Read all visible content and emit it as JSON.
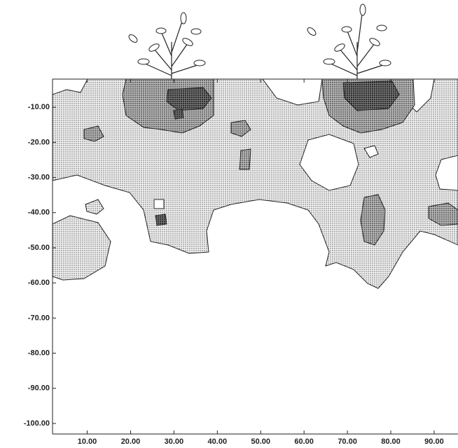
{
  "chart_data": {
    "type": "contour",
    "xlim": [
      2,
      95.5
    ],
    "ylim": [
      -103,
      -2
    ],
    "xticks": [
      {
        "value": 10,
        "label": "10.00"
      },
      {
        "value": 20,
        "label": "20.00"
      },
      {
        "value": 30,
        "label": "30.00"
      },
      {
        "value": 40,
        "label": "40.00"
      },
      {
        "value": 50,
        "label": "50.00"
      },
      {
        "value": 60,
        "label": "60.00"
      },
      {
        "value": 70,
        "label": "70.00"
      },
      {
        "value": 80,
        "label": "80.00"
      },
      {
        "value": 90,
        "label": "90.00"
      }
    ],
    "yticks": [
      {
        "value": -10,
        "label": "-10.00"
      },
      {
        "value": -20,
        "label": "-20.00"
      },
      {
        "value": -30,
        "label": "-30.00"
      },
      {
        "value": -40,
        "label": "-40.00"
      },
      {
        "value": -50,
        "label": "-50.00"
      },
      {
        "value": -60,
        "label": "-60.00"
      },
      {
        "value": -70,
        "label": "-70.00"
      },
      {
        "value": -80,
        "label": "-80.00"
      },
      {
        "value": -90,
        "label": "-90.00"
      },
      {
        "value": -100,
        "label": "-100.00"
      }
    ]
  }
}
